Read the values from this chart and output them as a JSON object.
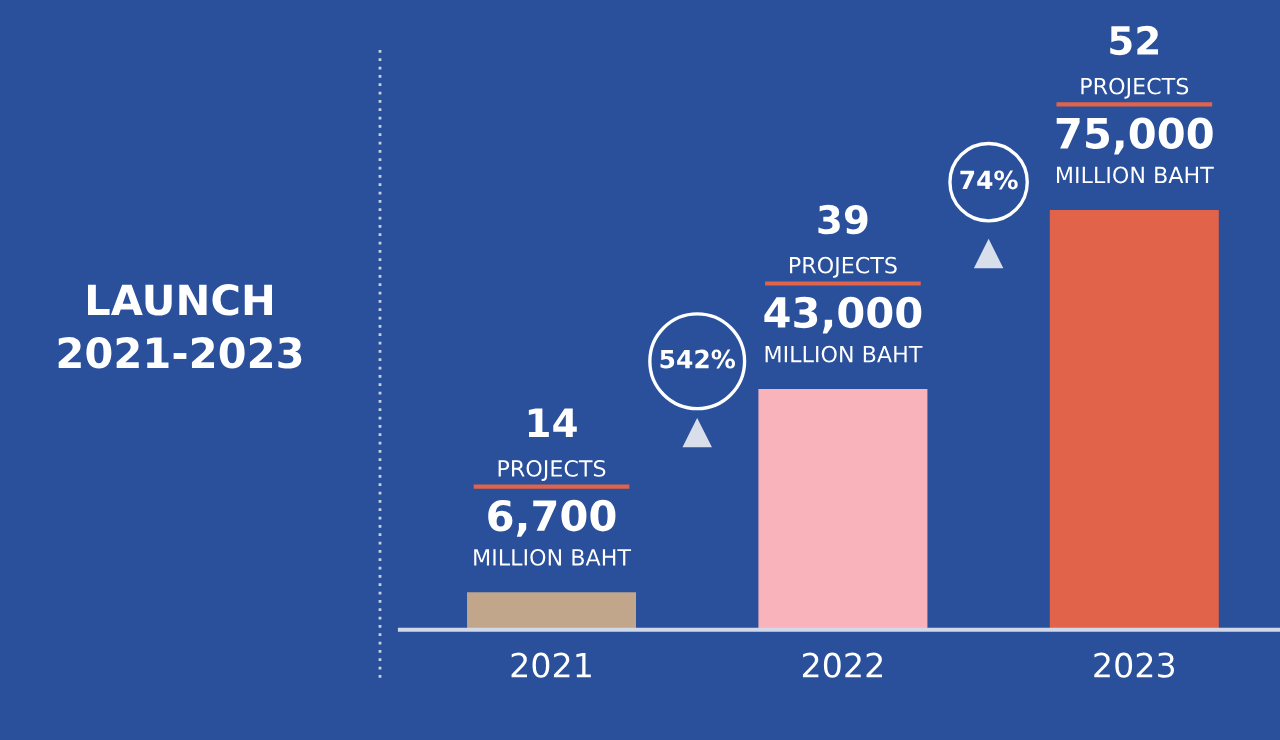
{
  "chart_data": {
    "type": "bar",
    "title": "LAUNCH\n2021-2023",
    "categories": [
      "2021",
      "2022",
      "2023"
    ],
    "values": [
      6700,
      43000,
      75000
    ],
    "colors": [
      "#c2a68c",
      "#f8b4ba",
      "#e0634a"
    ],
    "value_labels": [
      "6,700",
      "43,000",
      "75,000"
    ],
    "annotations": [
      "14",
      "PROJECTS",
      "MILLION BAHT",
      "39",
      "PROJECTS",
      "MILLION BAHT",
      "52",
      "PROJECTS",
      "MILLION BAHT",
      "542%",
      "74%"
    ],
    "grid": false,
    "legend": false
  }
}
